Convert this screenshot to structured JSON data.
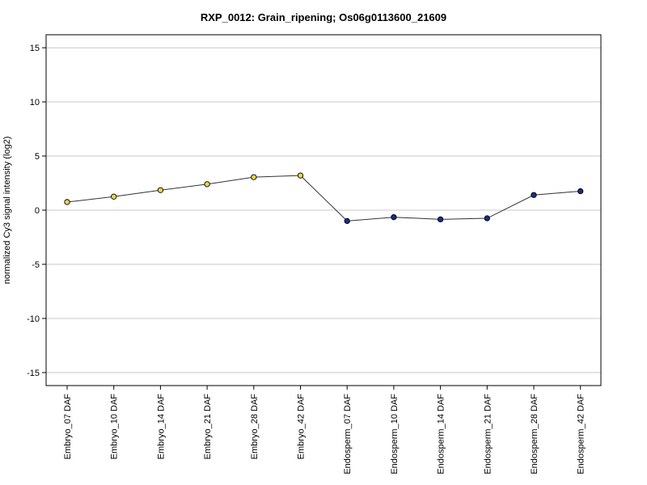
{
  "chart_data": {
    "type": "line",
    "title": "RXP_0012: Grain_ripening; Os06g0113600_21609",
    "xlabel": "",
    "ylabel": "normalized Cy3 signal intensity (log2)",
    "ylim": [
      -16.2,
      16.2
    ],
    "yticks": [
      -15,
      -10,
      -5,
      0,
      5,
      10,
      15
    ],
    "grid": true,
    "categories": [
      "Embryo_07 DAF",
      "Embryo_10 DAF",
      "Embryo_14 DAF",
      "Embryo_21 DAF",
      "Embryo_28 DAF",
      "Embryo_42 DAF",
      "Endosperm_07 DAF",
      "Endosperm_10 DAF",
      "Endosperm_14 DAF",
      "Endosperm_21 DAF",
      "Endosperm_28 DAF",
      "Endosperm_42 DAF"
    ],
    "values": [
      0.75,
      1.25,
      1.85,
      2.4,
      3.05,
      3.2,
      -1.0,
      -0.65,
      -0.85,
      -0.75,
      1.4,
      1.75
    ],
    "point_colors": [
      "#e8d44d",
      "#e8d44d",
      "#e8d44d",
      "#e8d44d",
      "#e8d44d",
      "#e8d44d",
      "#1a2d8c",
      "#1a2d8c",
      "#1a2d8c",
      "#1a2d8c",
      "#1a2d8c",
      "#1a2d8c"
    ],
    "line_color": "#333333",
    "grid_color": "#c8c8c8"
  }
}
